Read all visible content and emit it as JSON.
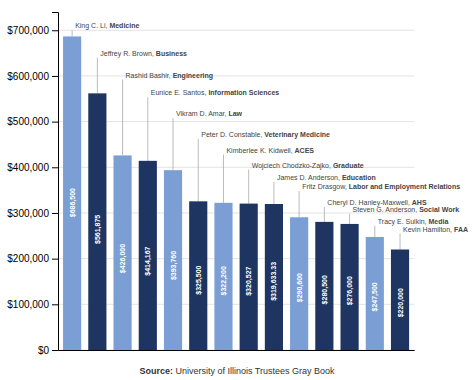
{
  "chart_data": {
    "type": "bar",
    "categories": [
      null,
      null,
      null,
      null,
      null,
      null,
      null,
      null,
      null,
      null,
      null,
      null,
      null,
      null
    ],
    "values": [
      686500,
      561875,
      426000,
      414167,
      393760,
      325500,
      322200,
      320527,
      319633.33,
      290600,
      280500,
      276000,
      247500,
      220000
    ],
    "value_labels": [
      "$686,500",
      "$561,875",
      "$426,000",
      "$414,167",
      "$393,760",
      "$325,500",
      "$322,200",
      "$320,527",
      "$319,633.33",
      "$290,600",
      "$280,500",
      "$276,000",
      "$247,500",
      "$220,000"
    ],
    "data_labels": true,
    "colors": [
      "#7b9fd4",
      "#1e3461",
      "#7b9fd4",
      "#1e3461",
      "#7b9fd4",
      "#1e3461",
      "#7b9fd4",
      "#1e3461",
      "#1e3461",
      "#7b9fd4",
      "#1e3461",
      "#1e3461",
      "#7b9fd4",
      "#1e3461"
    ],
    "annotations": [
      {
        "plain": "King C. Li, ",
        "bold": "Medicine",
        "y": 700000
      },
      {
        "plain": "Jeffrey R. Brown, ",
        "bold": "Business",
        "y": 640000
      },
      {
        "plain": "Rashid Bashir, ",
        "bold": "Engineering",
        "y": 592000
      },
      {
        "plain": "Eunice E. Santos, ",
        "bold": "Information Sciences",
        "y": 553000
      },
      {
        "plain": "Vikram D. Amar, ",
        "bold": "Law",
        "y": 508000
      },
      {
        "plain": "Peter D. Constable, ",
        "bold": "Veterinary Medicine",
        "y": 462000
      },
      {
        "plain": "Kimberlee K. Kidwell, ",
        "bold": "ACES",
        "y": 428000
      },
      {
        "plain": "Wojciech Chodzko-Zajko, ",
        "bold": "Graduate",
        "y": 395000
      },
      {
        "plain": "James D. Anderson, ",
        "bold": "Education",
        "y": 368000
      },
      {
        "plain": "Fritz Drasgow, ",
        "bold": "Labor and Employment Relations",
        "y": 348000
      },
      {
        "plain": "Cheryl D. Hanley-Maxwell, ",
        "bold": "AHS",
        "y": 313000
      },
      {
        "plain": "Steven G. Anderson, ",
        "bold": "Social Work",
        "y": 298000
      },
      {
        "plain": "Tracy E. Sulkin, ",
        "bold": "Media",
        "y": 272000
      },
      {
        "plain": "Kevin Hamilton, ",
        "bold": "FAA",
        "y": 255000
      }
    ],
    "source": {
      "bold": "Source:",
      "rest": " University of Illinois Trustees Gray Book"
    },
    "ylim": [
      0,
      740000
    ],
    "yticks": [
      {
        "value": 0,
        "label": "$0"
      },
      {
        "value": 100000,
        "label": "$100,000"
      },
      {
        "value": 200000,
        "label": "$200,000"
      },
      {
        "value": 300000,
        "label": "$300,000"
      },
      {
        "value": 400000,
        "label": "$400,000"
      },
      {
        "value": 500000,
        "label": "$500,000"
      },
      {
        "value": 600000,
        "label": "$600,000"
      },
      {
        "value": 700000,
        "label": "$700,000"
      }
    ],
    "grid": true
  }
}
